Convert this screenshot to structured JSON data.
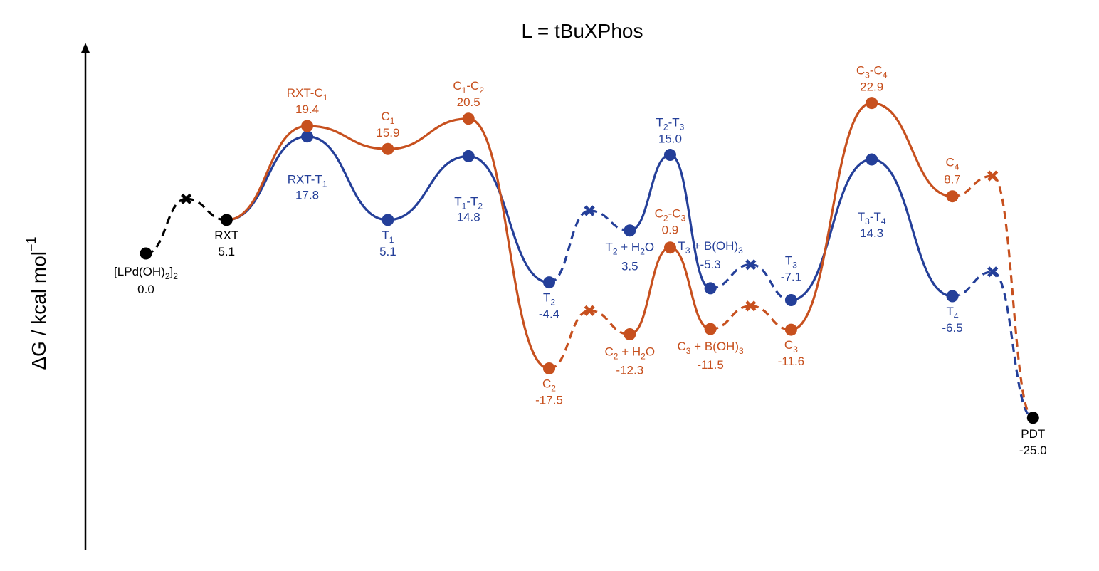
{
  "chart_data": {
    "type": "line",
    "title": "L = tBuXPhos",
    "xlabel": "",
    "ylabel": "ΔG / kcal mol",
    "ylabel_superscript": "−1",
    "ylim": [
      -40,
      35
    ],
    "colors": {
      "black": "#000000",
      "blue": "#243f99",
      "orange": "#c7501e"
    },
    "common_points": [
      {
        "id": "s0",
        "x": 0,
        "y": 0.0,
        "label": "[LPd(OH)2]2",
        "value": "0.0"
      },
      {
        "id": "s1",
        "x": 2,
        "y": 5.1,
        "label": "RXT",
        "value": "5.1"
      },
      {
        "id": "end",
        "x": 22,
        "y": -25.0,
        "label": "PDT",
        "value": "-25.0"
      }
    ],
    "common_markers": [
      {
        "x": 1,
        "y": 8.3
      }
    ],
    "series": [
      {
        "color_key": "blue",
        "points": [
          {
            "x": 4,
            "y": 17.8,
            "label": "RXT-T1",
            "value": "17.8"
          },
          {
            "x": 6,
            "y": 5.1,
            "label": "T1",
            "value": "5.1"
          },
          {
            "x": 8,
            "y": 14.8,
            "label": "T1-T2",
            "value": "14.8"
          },
          {
            "x": 10,
            "y": -4.4,
            "label": "T2",
            "value": "-4.4"
          },
          {
            "x": 12,
            "y": 3.5,
            "label": "T2 + H2O",
            "value": "3.5"
          },
          {
            "x": 13,
            "y": 15.0,
            "label": "T2-T3",
            "value": "15.0"
          },
          {
            "x": 14,
            "y": -5.3,
            "label": "T3 + B(OH)3",
            "value": "-5.3"
          },
          {
            "x": 16,
            "y": -7.1,
            "label": "T3",
            "value": "-7.1"
          },
          {
            "x": 18,
            "y": 14.3,
            "label": "T3-T4",
            "value": "14.3"
          },
          {
            "x": 20,
            "y": -6.5,
            "label": "T4",
            "value": "-6.5"
          }
        ],
        "markers": [
          {
            "x": 11,
            "y": 6.5
          },
          {
            "x": 15,
            "y": -1.7
          },
          {
            "x": 21,
            "y": -2.8
          }
        ]
      },
      {
        "color_key": "orange",
        "points": [
          {
            "x": 4,
            "y": 19.4,
            "label": "RXT-C1",
            "value": "19.4"
          },
          {
            "x": 6,
            "y": 15.9,
            "label": "C1",
            "value": "15.9"
          },
          {
            "x": 8,
            "y": 20.5,
            "label": "C1-C2",
            "value": "20.5"
          },
          {
            "x": 10,
            "y": -17.5,
            "label": "C2",
            "value": "-17.5"
          },
          {
            "x": 12,
            "y": -12.3,
            "label": "C2 + H2O",
            "value": "-12.3"
          },
          {
            "x": 13,
            "y": 0.9,
            "label": "C2-C3",
            "value": "0.9"
          },
          {
            "x": 14,
            "y": -11.5,
            "label": "C3 + B(OH)3",
            "value": "-11.5"
          },
          {
            "x": 16,
            "y": -11.6,
            "label": "C3",
            "value": "-11.6"
          },
          {
            "x": 18,
            "y": 22.9,
            "label": "C3-C4",
            "value": "22.9"
          },
          {
            "x": 20,
            "y": 8.7,
            "label": "C4",
            "value": "8.7"
          }
        ],
        "markers": [
          {
            "x": 11,
            "y": -8.7
          },
          {
            "x": 15,
            "y": -8.0
          },
          {
            "x": 21,
            "y": 11.8
          }
        ]
      }
    ]
  }
}
